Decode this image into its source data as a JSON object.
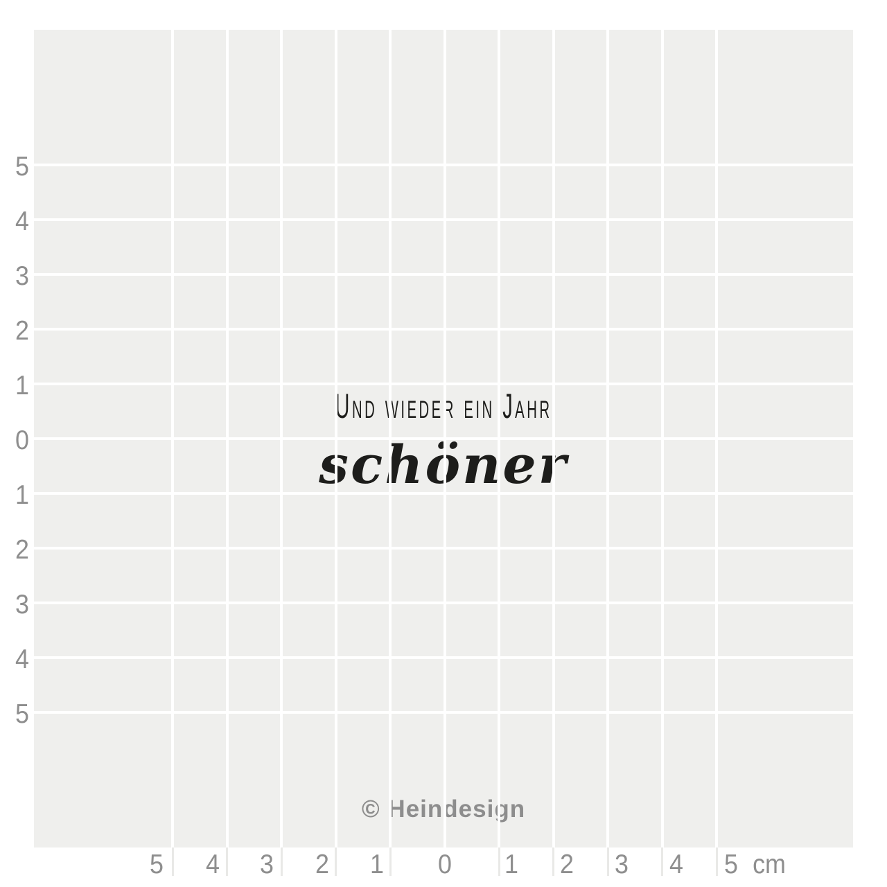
{
  "stamp": {
    "line1": "Und wieder ein Jahr",
    "line2": "schöner"
  },
  "watermark": {
    "text": "© Heindesign"
  },
  "ruler": {
    "left_labels": [
      "5",
      "4",
      "3",
      "2",
      "1",
      "0",
      "1",
      "2",
      "3",
      "4",
      "5"
    ],
    "bottom_labels": [
      "5",
      "4",
      "3",
      "2",
      "1",
      "0",
      "1",
      "2",
      "3",
      "4",
      "5"
    ],
    "unit": "cm"
  },
  "colors": {
    "grid_bg": "#efefed",
    "grid_line": "#ffffff",
    "tick": "#e9e9e7",
    "ruler_text": "#8e8e8e",
    "ink": "#1d1d1b",
    "watermark": "#8d8d8d"
  }
}
